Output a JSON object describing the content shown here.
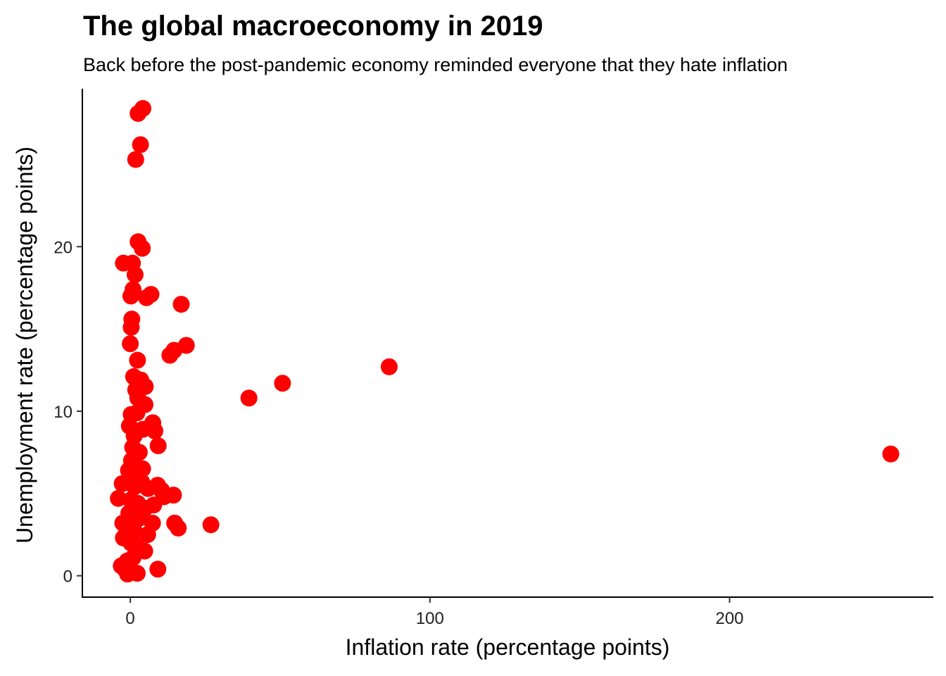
{
  "chart_data": {
    "type": "scatter",
    "title": "The global macroeconomy in 2019",
    "subtitle": "Back before the post-pandemic economy reminded everyone that they hate inflation",
    "xlabel": "Inflation rate (percentage points)",
    "ylabel": "Unemployment rate (percentage points)",
    "xlim": [
      -16,
      268
    ],
    "ylim": [
      -1.3,
      29.6
    ],
    "xticks": [
      0,
      100,
      200
    ],
    "yticks": [
      0,
      10,
      20
    ],
    "grid": false,
    "legend": "none",
    "point_color": "#ff0000",
    "points": [
      {
        "x": 4.2,
        "y": 28.4
      },
      {
        "x": 2.6,
        "y": 28.1
      },
      {
        "x": 3.4,
        "y": 26.2
      },
      {
        "x": 1.8,
        "y": 25.3
      },
      {
        "x": 2.6,
        "y": 20.3
      },
      {
        "x": 4.0,
        "y": 19.9
      },
      {
        "x": -2.3,
        "y": 19.0
      },
      {
        "x": 0.7,
        "y": 19.0
      },
      {
        "x": 1.6,
        "y": 18.3
      },
      {
        "x": 0.9,
        "y": 17.4
      },
      {
        "x": 0.2,
        "y": 17.0
      },
      {
        "x": 6.9,
        "y": 17.1
      },
      {
        "x": 5.4,
        "y": 16.9
      },
      {
        "x": 17.0,
        "y": 16.5
      },
      {
        "x": 0.5,
        "y": 15.6
      },
      {
        "x": 0.3,
        "y": 15.1
      },
      {
        "x": 0.0,
        "y": 14.1
      },
      {
        "x": 18.7,
        "y": 14.0
      },
      {
        "x": 14.6,
        "y": 13.7
      },
      {
        "x": 13.2,
        "y": 13.4
      },
      {
        "x": 2.4,
        "y": 13.1
      },
      {
        "x": 86.4,
        "y": 12.7
      },
      {
        "x": 1.1,
        "y": 12.1
      },
      {
        "x": 3.5,
        "y": 11.9
      },
      {
        "x": 5.0,
        "y": 11.5
      },
      {
        "x": 50.8,
        "y": 11.7
      },
      {
        "x": 39.6,
        "y": 10.8
      },
      {
        "x": 1.8,
        "y": 11.3
      },
      {
        "x": 2.5,
        "y": 10.8
      },
      {
        "x": 4.9,
        "y": 10.4
      },
      {
        "x": 0.3,
        "y": 9.8
      },
      {
        "x": 2.2,
        "y": 9.9
      },
      {
        "x": 7.5,
        "y": 9.3
      },
      {
        "x": -0.3,
        "y": 9.1
      },
      {
        "x": 8.2,
        "y": 8.8
      },
      {
        "x": 1.3,
        "y": 8.5
      },
      {
        "x": 4.2,
        "y": 8.9
      },
      {
        "x": 0.8,
        "y": 7.8
      },
      {
        "x": 9.3,
        "y": 7.9
      },
      {
        "x": 3.0,
        "y": 7.5
      },
      {
        "x": 0.4,
        "y": 7.0
      },
      {
        "x": -0.6,
        "y": 6.4
      },
      {
        "x": 1.9,
        "y": 6.2
      },
      {
        "x": 4.1,
        "y": 6.5
      },
      {
        "x": 0.7,
        "y": 5.9
      },
      {
        "x": -2.7,
        "y": 5.6
      },
      {
        "x": 1.4,
        "y": 5.4
      },
      {
        "x": 3.8,
        "y": 5.7
      },
      {
        "x": 5.9,
        "y": 5.3
      },
      {
        "x": 9.1,
        "y": 5.5
      },
      {
        "x": 10.4,
        "y": 5.2
      },
      {
        "x": 11.2,
        "y": 4.8
      },
      {
        "x": 14.4,
        "y": 4.9
      },
      {
        "x": -4.0,
        "y": 4.7
      },
      {
        "x": 0.2,
        "y": 4.6
      },
      {
        "x": 2.5,
        "y": 4.4
      },
      {
        "x": 4.9,
        "y": 4.1
      },
      {
        "x": 7.8,
        "y": 4.3
      },
      {
        "x": -0.5,
        "y": 3.8
      },
      {
        "x": 1.3,
        "y": 3.6
      },
      {
        "x": -2.5,
        "y": 3.2
      },
      {
        "x": 0.3,
        "y": 3.3
      },
      {
        "x": 3.0,
        "y": 3.5
      },
      {
        "x": 7.4,
        "y": 3.2
      },
      {
        "x": 14.8,
        "y": 3.2
      },
      {
        "x": 16.0,
        "y": 2.9
      },
      {
        "x": 26.9,
        "y": 3.1
      },
      {
        "x": 1.4,
        "y": 2.7
      },
      {
        "x": 5.8,
        "y": 2.5
      },
      {
        "x": -2.3,
        "y": 2.3
      },
      {
        "x": 0.2,
        "y": 2.0
      },
      {
        "x": 2.1,
        "y": 1.8
      },
      {
        "x": 4.8,
        "y": 1.5
      },
      {
        "x": -1.0,
        "y": 0.9
      },
      {
        "x": 0.9,
        "y": 1.1
      },
      {
        "x": -3.0,
        "y": 0.6
      },
      {
        "x": -1.8,
        "y": 0.4
      },
      {
        "x": -0.9,
        "y": 0.1
      },
      {
        "x": 2.3,
        "y": 0.15
      },
      {
        "x": 9.2,
        "y": 0.4
      },
      {
        "x": 253.8,
        "y": 7.4
      }
    ]
  }
}
